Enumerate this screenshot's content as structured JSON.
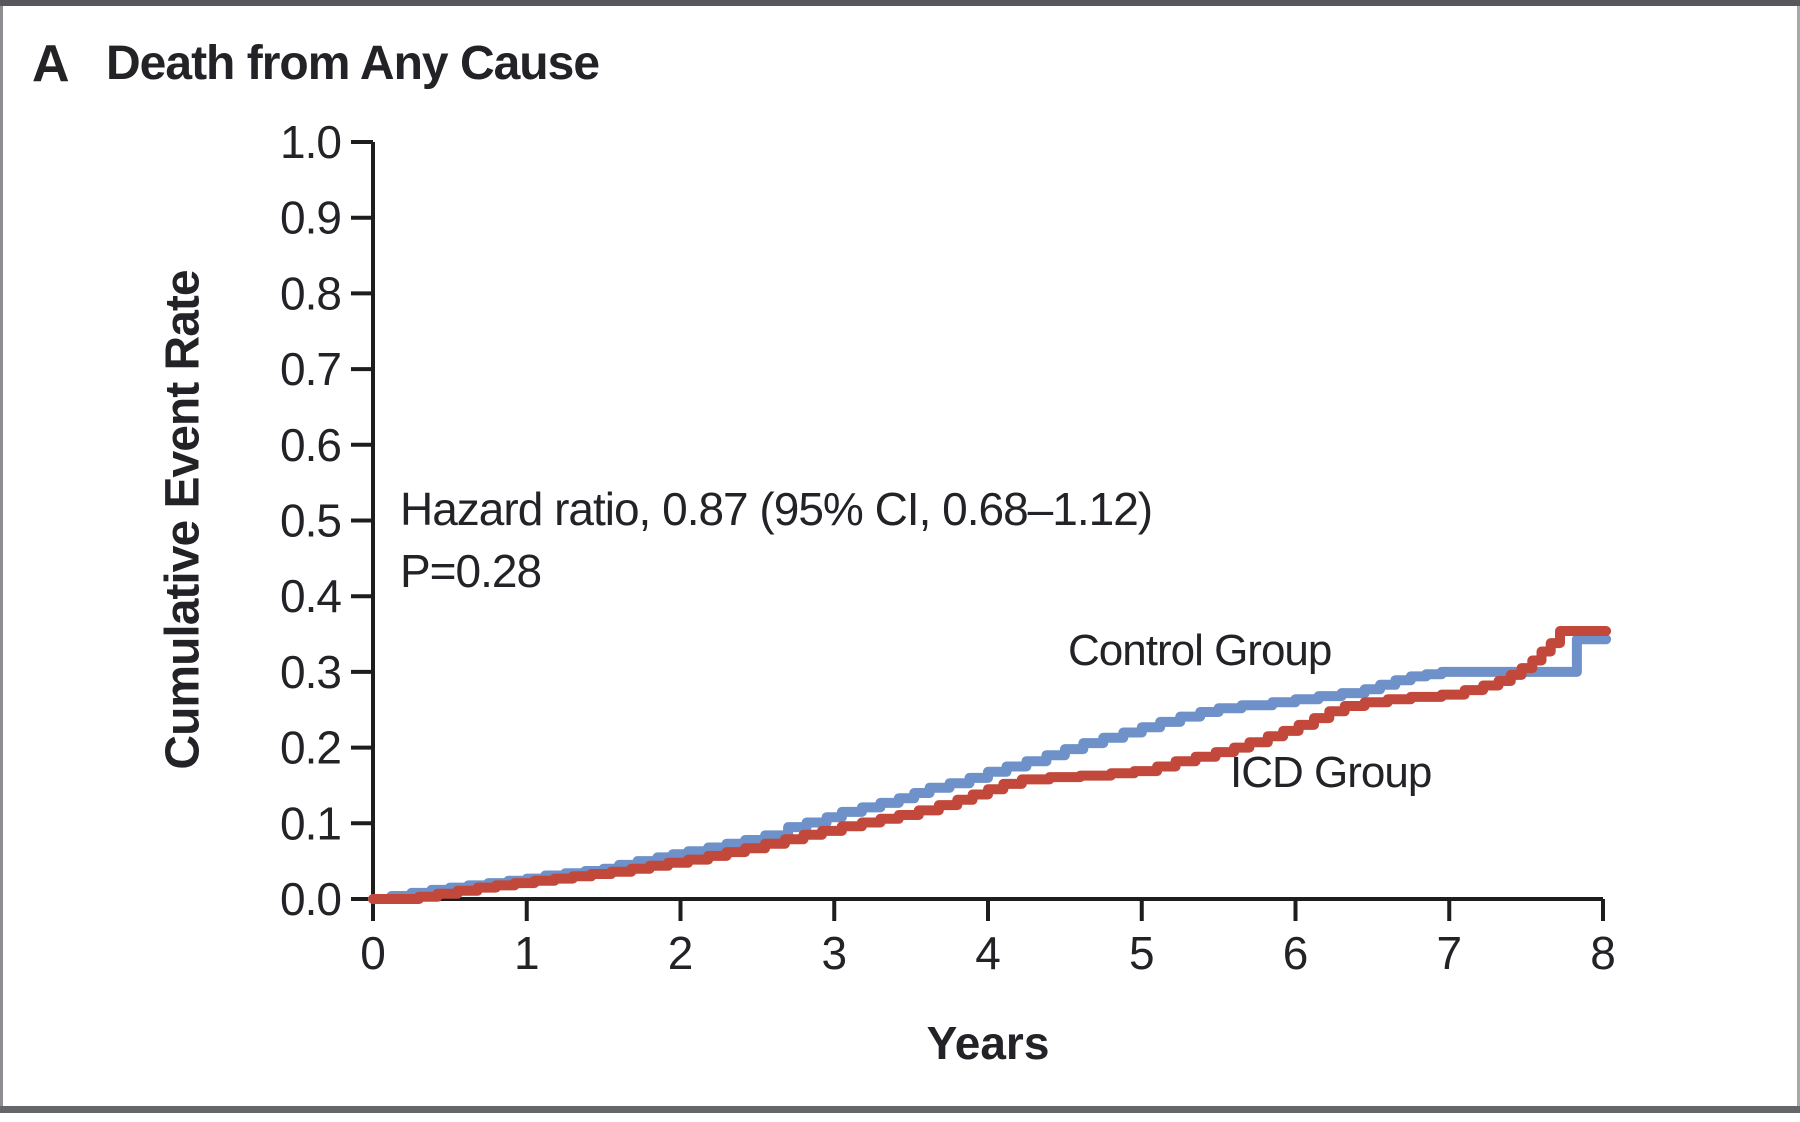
{
  "panel": {
    "letter": "A",
    "title": "Death from Any Cause"
  },
  "chart_data": {
    "type": "line",
    "subtype": "kaplan-meier-step",
    "title": "Death from Any Cause",
    "xlabel": "Years",
    "ylabel": "Cumulative Event Rate",
    "xlim": [
      0,
      8
    ],
    "ylim": [
      0.0,
      1.0
    ],
    "grid": "off",
    "legend_position": "inline-labels-on-plot",
    "x_ticks": [
      "0",
      "1",
      "2",
      "3",
      "4",
      "5",
      "6",
      "7",
      "8"
    ],
    "y_ticks": [
      "0.0",
      "0.1",
      "0.2",
      "0.3",
      "0.4",
      "0.5",
      "0.6",
      "0.7",
      "0.8",
      "0.9",
      "1.0"
    ],
    "annotation": {
      "line1": "Hazard ratio, 0.87 (95% CI, 0.68–1.12)",
      "line2": "P=0.28"
    },
    "axis_color": "#1d1d1f",
    "series": [
      {
        "name": "Control Group",
        "color": "#6d91c8",
        "points": [
          [
            0,
            0
          ],
          [
            0.12,
            0.004
          ],
          [
            0.25,
            0.008
          ],
          [
            0.38,
            0.012
          ],
          [
            0.5,
            0.015
          ],
          [
            0.62,
            0.018
          ],
          [
            0.75,
            0.021
          ],
          [
            0.88,
            0.024
          ],
          [
            1.0,
            0.027
          ],
          [
            1.12,
            0.031
          ],
          [
            1.25,
            0.034
          ],
          [
            1.38,
            0.037
          ],
          [
            1.5,
            0.04
          ],
          [
            1.6,
            0.045
          ],
          [
            1.72,
            0.05
          ],
          [
            1.85,
            0.055
          ],
          [
            1.95,
            0.059
          ],
          [
            2.05,
            0.063
          ],
          [
            2.18,
            0.068
          ],
          [
            2.3,
            0.073
          ],
          [
            2.42,
            0.078
          ],
          [
            2.55,
            0.084
          ],
          [
            2.7,
            0.095
          ],
          [
            2.82,
            0.101
          ],
          [
            2.95,
            0.108
          ],
          [
            3.05,
            0.115
          ],
          [
            3.18,
            0.121
          ],
          [
            3.3,
            0.127
          ],
          [
            3.42,
            0.133
          ],
          [
            3.52,
            0.14
          ],
          [
            3.62,
            0.147
          ],
          [
            3.75,
            0.153
          ],
          [
            3.88,
            0.16
          ],
          [
            4.0,
            0.168
          ],
          [
            4.12,
            0.175
          ],
          [
            4.25,
            0.182
          ],
          [
            4.38,
            0.19
          ],
          [
            4.5,
            0.198
          ],
          [
            4.62,
            0.206
          ],
          [
            4.75,
            0.213
          ],
          [
            4.88,
            0.22
          ],
          [
            5.0,
            0.227
          ],
          [
            5.12,
            0.234
          ],
          [
            5.25,
            0.241
          ],
          [
            5.38,
            0.247
          ],
          [
            5.5,
            0.252
          ],
          [
            5.65,
            0.256
          ],
          [
            5.85,
            0.26
          ],
          [
            6.0,
            0.264
          ],
          [
            6.15,
            0.268
          ],
          [
            6.3,
            0.272
          ],
          [
            6.45,
            0.277
          ],
          [
            6.55,
            0.283
          ],
          [
            6.65,
            0.289
          ],
          [
            6.75,
            0.294
          ],
          [
            6.85,
            0.297
          ],
          [
            6.95,
            0.3
          ],
          [
            7.83,
            0.343
          ],
          [
            8.02,
            0.343
          ]
        ]
      },
      {
        "name": "ICD Group",
        "color": "#c1483a",
        "points": [
          [
            0,
            0
          ],
          [
            0.3,
            0.003
          ],
          [
            0.42,
            0.007
          ],
          [
            0.55,
            0.011
          ],
          [
            0.68,
            0.015
          ],
          [
            0.8,
            0.018
          ],
          [
            0.92,
            0.021
          ],
          [
            1.05,
            0.024
          ],
          [
            1.18,
            0.027
          ],
          [
            1.3,
            0.03
          ],
          [
            1.42,
            0.033
          ],
          [
            1.55,
            0.036
          ],
          [
            1.68,
            0.04
          ],
          [
            1.8,
            0.044
          ],
          [
            1.92,
            0.048
          ],
          [
            2.05,
            0.052
          ],
          [
            2.18,
            0.057
          ],
          [
            2.3,
            0.062
          ],
          [
            2.42,
            0.067
          ],
          [
            2.55,
            0.073
          ],
          [
            2.68,
            0.079
          ],
          [
            2.8,
            0.085
          ],
          [
            2.92,
            0.09
          ],
          [
            3.05,
            0.096
          ],
          [
            3.18,
            0.101
          ],
          [
            3.3,
            0.106
          ],
          [
            3.42,
            0.111
          ],
          [
            3.55,
            0.117
          ],
          [
            3.68,
            0.124
          ],
          [
            3.8,
            0.131
          ],
          [
            3.9,
            0.138
          ],
          [
            4.0,
            0.145
          ],
          [
            4.1,
            0.152
          ],
          [
            4.22,
            0.158
          ],
          [
            4.4,
            0.161
          ],
          [
            4.6,
            0.163
          ],
          [
            4.8,
            0.166
          ],
          [
            4.95,
            0.169
          ],
          [
            5.1,
            0.175
          ],
          [
            5.22,
            0.182
          ],
          [
            5.35,
            0.188
          ],
          [
            5.48,
            0.194
          ],
          [
            5.6,
            0.2
          ],
          [
            5.7,
            0.207
          ],
          [
            5.82,
            0.215
          ],
          [
            5.92,
            0.222
          ],
          [
            6.02,
            0.23
          ],
          [
            6.12,
            0.239
          ],
          [
            6.22,
            0.248
          ],
          [
            6.32,
            0.255
          ],
          [
            6.45,
            0.26
          ],
          [
            6.6,
            0.264
          ],
          [
            6.75,
            0.267
          ],
          [
            6.95,
            0.27
          ],
          [
            7.1,
            0.276
          ],
          [
            7.22,
            0.282
          ],
          [
            7.32,
            0.288
          ],
          [
            7.4,
            0.296
          ],
          [
            7.47,
            0.305
          ],
          [
            7.54,
            0.315
          ],
          [
            7.6,
            0.327
          ],
          [
            7.66,
            0.338
          ],
          [
            7.72,
            0.354
          ],
          [
            8.02,
            0.354
          ]
        ]
      }
    ]
  }
}
